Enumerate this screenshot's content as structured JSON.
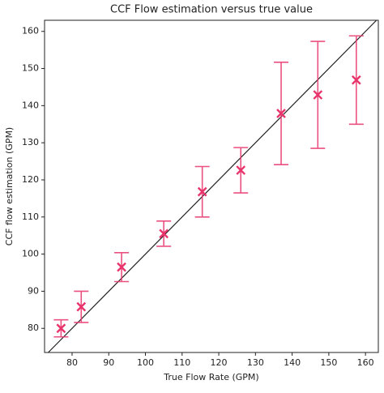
{
  "chart_data": {
    "type": "scatter",
    "title": "CCF Flow estimation versus true value",
    "x_label": "True Flow Rate (GPM)",
    "y_label": "CCF flow estimation (GPM)",
    "x": [
      77,
      82.5,
      93.5,
      105,
      115.5,
      126,
      137,
      147,
      157.5
    ],
    "series": [
      {
        "color": "#e8336b",
        "values": [
          80,
          85.8,
          96.5,
          105.5,
          116.8,
          122.6,
          137.9,
          142.9,
          146.9
        ],
        "errors": [
          2.3,
          4.2,
          3.9,
          3.4,
          6.8,
          6.1,
          13.8,
          14.4,
          11.9
        ]
      }
    ],
    "xlim": [
      72.5,
      163.5
    ],
    "ylim": [
      73.5,
      163
    ],
    "xticks": [
      80,
      90,
      100,
      110,
      120,
      130,
      140,
      150,
      160
    ],
    "yticks": [
      80,
      90,
      100,
      110,
      120,
      130,
      140,
      150,
      160
    ],
    "reference_line": "y=x",
    "grid": false
  }
}
